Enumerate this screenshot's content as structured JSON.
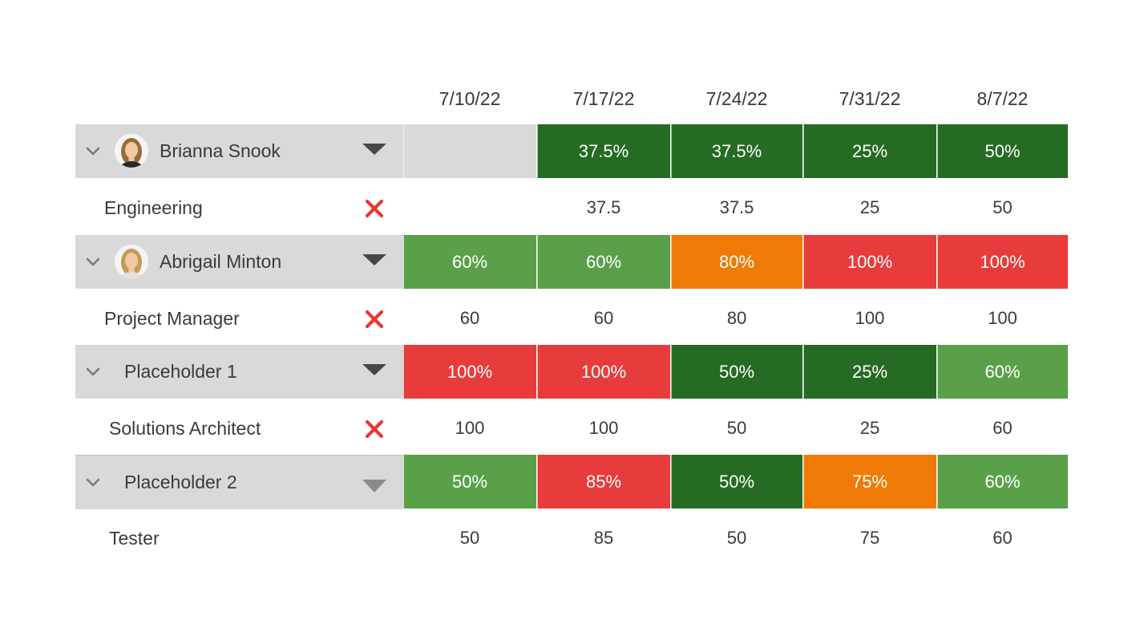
{
  "columns": [
    "7/10/22",
    "7/17/22",
    "7/24/22",
    "7/31/22",
    "8/7/22"
  ],
  "colors": {
    "dark_green": "#266b23",
    "light_green": "#5aa049",
    "orange": "#ef7a05",
    "red": "#e83c3c",
    "empty": "#d9d9d9",
    "remove_red": "#e53935"
  },
  "rows": [
    {
      "name": "Brianna Snook",
      "avatar": true,
      "role": "Engineering",
      "removable": true,
      "percents": [
        "",
        "37.5%",
        "37.5%",
        "25%",
        "50%"
      ],
      "percent_colors": [
        "empty",
        "dark_green",
        "dark_green",
        "dark_green",
        "dark_green"
      ],
      "hours": [
        "",
        "37.5",
        "37.5",
        "25",
        "50"
      ]
    },
    {
      "name": "Abrigail Minton",
      "avatar": true,
      "role": "Project Manager",
      "removable": true,
      "percents": [
        "60%",
        "60%",
        "80%",
        "100%",
        "100%"
      ],
      "percent_colors": [
        "light_green",
        "light_green",
        "orange",
        "red",
        "red"
      ],
      "hours": [
        "60",
        "60",
        "80",
        "100",
        "100"
      ]
    },
    {
      "name": "Placeholder 1",
      "avatar": false,
      "role": "Solutions Architect",
      "removable": true,
      "percents": [
        "100%",
        "100%",
        "50%",
        "25%",
        "60%"
      ],
      "percent_colors": [
        "red",
        "red",
        "dark_green",
        "dark_green",
        "light_green"
      ],
      "hours": [
        "100",
        "100",
        "50",
        "25",
        "60"
      ]
    },
    {
      "name": "Placeholder 2",
      "avatar": false,
      "role": "Tester",
      "removable": false,
      "percents": [
        "50%",
        "85%",
        "50%",
        "75%",
        "60%"
      ],
      "percent_colors": [
        "light_green",
        "red",
        "dark_green",
        "orange",
        "light_green"
      ],
      "hours": [
        "50",
        "85",
        "50",
        "75",
        "60"
      ]
    }
  ],
  "icons": {
    "expand": "chevron-down-icon",
    "menu": "caret-down-icon",
    "remove": "close-x-icon"
  }
}
